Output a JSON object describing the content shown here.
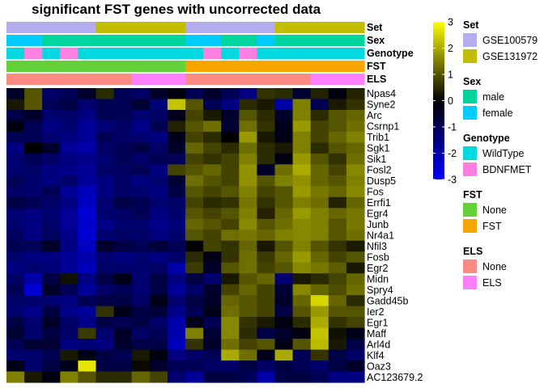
{
  "chart_data": {
    "type": "heatmap",
    "title": "significant FST genes with uncorrected data",
    "rows": [
      "Npas4",
      "Syne2",
      "Arc",
      "Csrnp1",
      "Trib1",
      "Sgk1",
      "Sik1",
      "Fosl2",
      "Dusp5",
      "Fos",
      "Errfi1",
      "Egr4",
      "Junb",
      "Nr4a1",
      "Nfil3",
      "Fosb",
      "Egr2",
      "Midn",
      "Spry4",
      "Gadd45b",
      "Ier2",
      "Egr1",
      "Maff",
      "Arl4d",
      "Klf4",
      "Oaz3",
      "AC123679.2"
    ],
    "n_columns": 20,
    "values": [
      [
        -0.5,
        1.0,
        -1.2,
        -1.0,
        -0.5,
        0.5,
        -1.0,
        -1.2,
        -0.5,
        -0.2,
        -1.0,
        -0.5,
        -1.0,
        -1.5,
        0.6,
        0.5,
        -0.6,
        0.4,
        -0.2,
        0.4
      ],
      [
        0.3,
        1.0,
        -1.0,
        -0.8,
        -1.3,
        -1.0,
        -1.0,
        -0.6,
        -1.4,
        2.3,
        1.0,
        -1.0,
        -1.5,
        0.5,
        0.3,
        -2.0,
        1.5,
        -1.0,
        0.3,
        0.6
      ],
      [
        -0.8,
        -0.5,
        -1.3,
        -1.2,
        -1.5,
        -1.0,
        -1.0,
        -1.3,
        -1.2,
        -0.3,
        0.8,
        0.3,
        -0.5,
        1.0,
        0.5,
        -0.5,
        1.5,
        0.5,
        1.0,
        1.2
      ],
      [
        -0.2,
        -1.0,
        -1.5,
        -1.3,
        -1.8,
        -1.4,
        -1.2,
        -1.6,
        -1.0,
        0.4,
        1.0,
        1.3,
        -0.6,
        1.3,
        0.6,
        -0.3,
        1.8,
        0.8,
        1.0,
        1.3
      ],
      [
        -1.0,
        -1.0,
        -1.3,
        -1.5,
        -1.8,
        -1.0,
        -1.2,
        -1.3,
        -1.5,
        -0.3,
        0.8,
        0.5,
        0.0,
        1.8,
        0.3,
        -0.3,
        1.5,
        0.8,
        1.2,
        1.5
      ],
      [
        -1.5,
        0.0,
        -0.5,
        -1.8,
        -2.0,
        -1.2,
        -1.0,
        -0.8,
        -1.2,
        -0.5,
        1.2,
        0.8,
        0.5,
        1.3,
        0.5,
        0.3,
        1.5,
        0.5,
        1.0,
        1.2
      ],
      [
        -1.3,
        -1.0,
        -1.2,
        -1.5,
        -1.6,
        -1.3,
        -1.0,
        -1.2,
        -1.0,
        -1.0,
        0.8,
        0.6,
        0.8,
        1.5,
        0.5,
        -0.2,
        1.8,
        1.0,
        0.6,
        1.3
      ],
      [
        -1.3,
        -1.2,
        -1.5,
        -1.6,
        -1.8,
        -1.2,
        -1.1,
        -1.0,
        -1.5,
        0.8,
        1.0,
        1.2,
        0.8,
        1.7,
        -0.5,
        1.3,
        2.0,
        1.2,
        0.8,
        1.6
      ],
      [
        -1.0,
        -1.3,
        -1.5,
        -1.2,
        -1.8,
        -1.5,
        -1.2,
        -1.5,
        -1.3,
        -0.6,
        1.3,
        1.0,
        0.8,
        1.7,
        1.0,
        1.5,
        1.7,
        1.2,
        1.0,
        1.5
      ],
      [
        -1.2,
        -1.3,
        -1.0,
        -1.8,
        -2.2,
        -1.5,
        -1.2,
        -1.3,
        -1.5,
        -0.8,
        1.0,
        0.8,
        1.0,
        1.5,
        0.8,
        1.0,
        1.8,
        1.4,
        1.2,
        1.6
      ],
      [
        -0.8,
        -1.0,
        -1.2,
        -1.5,
        -2.3,
        -1.3,
        -0.8,
        -1.0,
        -1.3,
        -1.2,
        0.8,
        0.5,
        0.6,
        1.4,
        0.6,
        1.0,
        1.5,
        1.3,
        0.4,
        1.2
      ],
      [
        -1.3,
        -1.5,
        -1.3,
        -1.8,
        -2.5,
        -1.3,
        -1.2,
        -1.0,
        -1.5,
        -1.3,
        1.0,
        0.8,
        1.0,
        1.5,
        0.4,
        1.2,
        1.8,
        1.5,
        1.2,
        1.4
      ],
      [
        -1.3,
        -1.5,
        -1.2,
        -1.8,
        -2.4,
        -1.6,
        -1.3,
        -1.3,
        -1.6,
        -1.4,
        1.2,
        1.0,
        0.8,
        1.6,
        1.0,
        1.3,
        1.6,
        1.5,
        1.0,
        1.4
      ],
      [
        -1.1,
        -1.5,
        -1.1,
        -1.6,
        -2.5,
        -1.3,
        -1.2,
        -1.2,
        -1.5,
        -1.3,
        1.0,
        0.8,
        1.3,
        1.4,
        1.2,
        1.5,
        1.6,
        1.5,
        1.0,
        1.3
      ],
      [
        -1.0,
        -1.0,
        -0.5,
        -1.5,
        -2.3,
        -0.5,
        -0.8,
        -1.0,
        -0.7,
        -1.0,
        0.0,
        0.8,
        0.6,
        1.2,
        0.3,
        1.0,
        1.5,
        1.0,
        0.6,
        0.3
      ],
      [
        -1.3,
        -1.5,
        -1.5,
        -1.8,
        -2.0,
        -1.3,
        -1.5,
        -1.3,
        -1.5,
        -1.2,
        0.5,
        -0.3,
        0.6,
        1.3,
        0.7,
        1.2,
        1.8,
        1.2,
        0.8,
        1.0
      ],
      [
        -1.5,
        -1.3,
        -1.4,
        -1.8,
        -2.2,
        -1.2,
        -1.3,
        -1.3,
        -1.2,
        -2.0,
        0.7,
        -0.5,
        1.0,
        1.3,
        0.8,
        1.0,
        1.6,
        1.4,
        1.1,
        0.3
      ],
      [
        -1.2,
        -2.0,
        -0.8,
        0.2,
        -1.5,
        -0.8,
        -0.3,
        -1.3,
        -0.8,
        -1.5,
        -0.8,
        -1.3,
        0.3,
        1.0,
        1.2,
        -1.3,
        0.3,
        0.5,
        0.8,
        1.2
      ],
      [
        -1.0,
        -2.5,
        -0.5,
        -1.0,
        -1.8,
        -1.2,
        -1.0,
        -1.3,
        -0.8,
        -1.8,
        -1.2,
        -0.5,
        0.8,
        1.2,
        0.8,
        -0.6,
        1.6,
        1.2,
        0.9,
        1.3
      ],
      [
        -1.2,
        -1.3,
        -1.3,
        -1.5,
        -1.0,
        -0.8,
        -0.8,
        -1.2,
        -0.3,
        -1.3,
        -0.8,
        -0.5,
        1.2,
        1.0,
        0.8,
        -0.5,
        1.2,
        2.5,
        1.2,
        0.5
      ],
      [
        -1.3,
        -1.6,
        -0.8,
        -1.6,
        -1.8,
        0.6,
        -0.3,
        -0.8,
        -0.7,
        -1.6,
        -1.0,
        -0.3,
        1.3,
        1.0,
        0.8,
        -0.8,
        1.0,
        1.8,
        1.0,
        1.0
      ],
      [
        -0.8,
        -1.3,
        -0.5,
        -1.2,
        -1.6,
        -0.8,
        -1.0,
        -0.8,
        -1.2,
        -2.0,
        -0.3,
        -1.0,
        1.6,
        0.6,
        0.3,
        -0.2,
        0.5,
        2.0,
        0.6,
        0.8
      ],
      [
        -0.6,
        -1.3,
        -0.8,
        -1.2,
        0.7,
        -1.3,
        -0.5,
        -1.2,
        -1.0,
        -2.0,
        1.5,
        -0.6,
        1.6,
        0.5,
        -0.8,
        -0.5,
        -0.2,
        2.3,
        0.2,
        -0.3
      ],
      [
        -1.0,
        -0.6,
        -0.6,
        -1.5,
        -1.4,
        -1.5,
        -0.5,
        -0.8,
        -0.8,
        -2.2,
        0.6,
        -0.5,
        1.3,
        0.8,
        1.0,
        -0.3,
        1.0,
        2.2,
        0.3,
        -0.8
      ],
      [
        -1.3,
        -1.3,
        -1.0,
        0.3,
        -0.3,
        -0.8,
        -1.0,
        0.3,
        -0.2,
        -1.5,
        -1.2,
        -1.0,
        2.0,
        1.3,
        -0.3,
        2.0,
        -1.0,
        0.6,
        -0.8,
        -1.2
      ],
      [
        -0.3,
        -1.2,
        -0.8,
        -0.3,
        2.7,
        -0.8,
        -0.8,
        0.1,
        -0.5,
        -1.0,
        -1.0,
        -1.2,
        -1.2,
        -0.8,
        -1.2,
        -0.8,
        -1.0,
        -1.2,
        -0.8,
        -0.5
      ],
      [
        1.5,
        0.3,
        -0.2,
        1.5,
        1.0,
        0.5,
        0.5,
        1.2,
        0.8,
        -1.3,
        -1.8,
        -0.8,
        -0.8,
        -1.0,
        -2.0,
        -0.8,
        -0.8,
        -1.0,
        -1.5,
        -1.5
      ]
    ],
    "annotations": [
      {
        "name": "Set",
        "values": [
          "GSE100579",
          "GSE100579",
          "GSE100579",
          "GSE100579",
          "GSE100579",
          "GSE131972",
          "GSE131972",
          "GSE131972",
          "GSE131972",
          "GSE131972",
          "GSE100579",
          "GSE100579",
          "GSE100579",
          "GSE100579",
          "GSE100579",
          "GSE131972",
          "GSE131972",
          "GSE131972",
          "GSE131972",
          "GSE131972"
        ]
      },
      {
        "name": "Sex",
        "values": [
          "female",
          "female",
          "male",
          "male",
          "male",
          "male",
          "male",
          "male",
          "male",
          "male",
          "female",
          "female",
          "male",
          "male",
          "female",
          "male",
          "male",
          "male",
          "male",
          "male"
        ]
      },
      {
        "name": "Genotype",
        "values": [
          "WildType",
          "BDNFMET",
          "WildType",
          "BDNFMET",
          "WildType",
          "WildType",
          "WildType",
          "WildType",
          "WildType",
          "WildType",
          "WildType",
          "BDNFMET",
          "WildType",
          "BDNFMET",
          "WildType",
          "WildType",
          "WildType",
          "WildType",
          "WildType",
          "WildType"
        ]
      },
      {
        "name": "FST",
        "values": [
          "None",
          "None",
          "None",
          "None",
          "None",
          "None",
          "None",
          "None",
          "None",
          "None",
          "FST",
          "FST",
          "FST",
          "FST",
          "FST",
          "FST",
          "FST",
          "FST",
          "FST",
          "FST"
        ]
      },
      {
        "name": "ELS",
        "values": [
          "None",
          "None",
          "None",
          "None",
          "None",
          "None",
          "None",
          "ELS",
          "ELS",
          "ELS",
          "None",
          "None",
          "None",
          "None",
          "None",
          "None",
          "None",
          "ELS",
          "ELS",
          "ELS"
        ]
      }
    ],
    "colorbar": {
      "min": -3,
      "max": 3,
      "ticks": [
        3,
        2,
        1,
        0,
        -1,
        -2,
        -3
      ],
      "colors": [
        "#0000ff",
        "#000000",
        "#ffff00"
      ]
    },
    "legends": [
      {
        "title": "Set",
        "entries": [
          {
            "label": "GSE100579",
            "color": "#b3adf0"
          },
          {
            "label": "GSE131972",
            "color": "#c2bd00"
          }
        ]
      },
      {
        "title": "Sex",
        "entries": [
          {
            "label": "male",
            "color": "#00d59e"
          },
          {
            "label": "female",
            "color": "#00ccff"
          }
        ]
      },
      {
        "title": "Genotype",
        "entries": [
          {
            "label": "WildType",
            "color": "#00d9e0"
          },
          {
            "label": "BDNFMET",
            "color": "#ff80e0"
          }
        ]
      },
      {
        "title": "FST",
        "entries": [
          {
            "label": "None",
            "color": "#61d137"
          },
          {
            "label": "FST",
            "color": "#f7a600"
          }
        ]
      },
      {
        "title": "ELS",
        "entries": [
          {
            "label": "None",
            "color": "#fa8a82"
          },
          {
            "label": "ELS",
            "color": "#ff80ff"
          }
        ]
      }
    ]
  }
}
